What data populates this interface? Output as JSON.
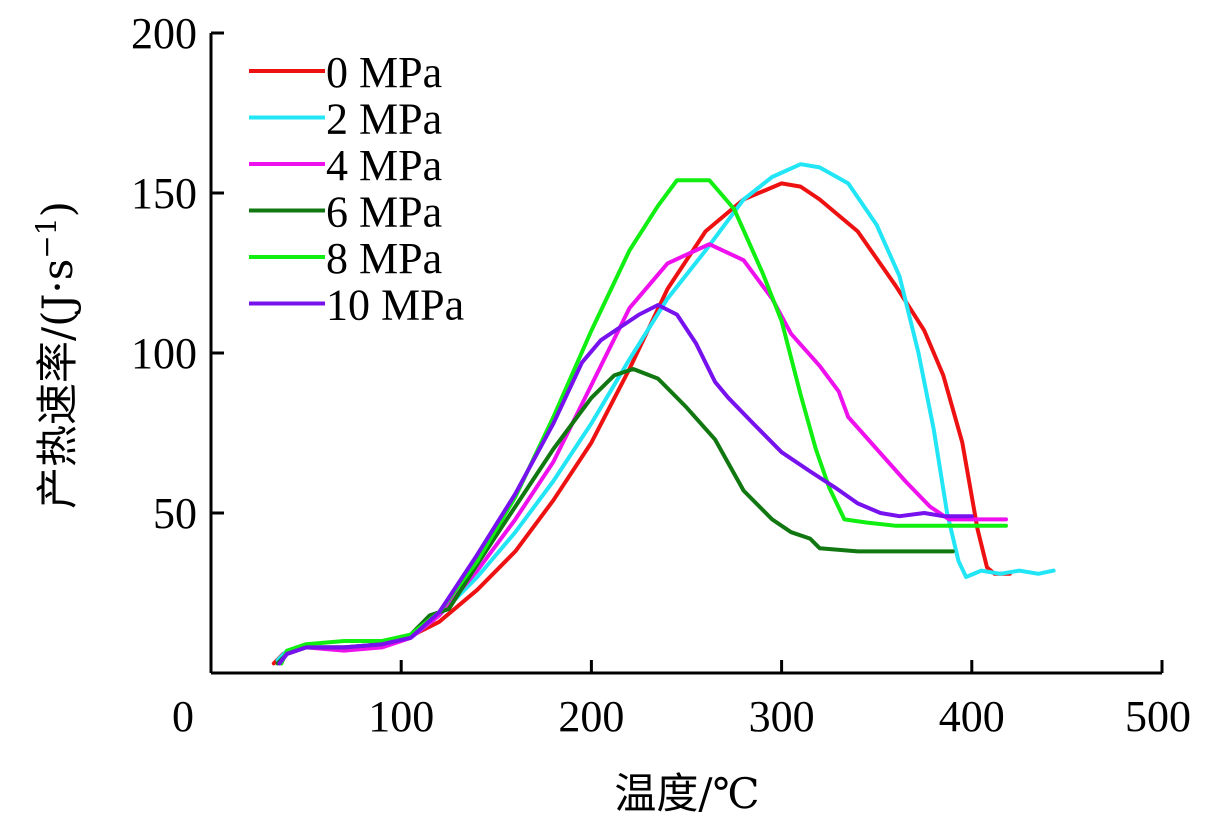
{
  "chart_data": {
    "type": "line",
    "title": "",
    "xlabel": "温度/℃",
    "ylabel": "产热速率/(J·s⁻¹)",
    "ylabel_parts": {
      "main": "产热速率/(J·s",
      "sup": "−1",
      "close": ")"
    },
    "xlim": [
      0,
      500
    ],
    "ylim": [
      0,
      200
    ],
    "xticks": [
      0,
      100,
      200,
      300,
      400,
      500
    ],
    "yticks": [
      50,
      100,
      150,
      200
    ],
    "xtick_labels": [
      "0",
      "100",
      "200",
      "300",
      "400",
      "500"
    ],
    "ytick_labels": [
      "50",
      "100",
      "150",
      "200"
    ],
    "grid": false,
    "legend_position": "top-left",
    "series": [
      {
        "name": "0 MPa",
        "color": "#ee1111",
        "points": [
          [
            33,
            3
          ],
          [
            38,
            6
          ],
          [
            45,
            8
          ],
          [
            60,
            8
          ],
          [
            80,
            8
          ],
          [
            100,
            10
          ],
          [
            120,
            16
          ],
          [
            140,
            26
          ],
          [
            160,
            38
          ],
          [
            180,
            54
          ],
          [
            200,
            72
          ],
          [
            220,
            95
          ],
          [
            240,
            120
          ],
          [
            260,
            138
          ],
          [
            280,
            148
          ],
          [
            300,
            153
          ],
          [
            310,
            152
          ],
          [
            320,
            148
          ],
          [
            340,
            138
          ],
          [
            360,
            121
          ],
          [
            375,
            107
          ],
          [
            385,
            93
          ],
          [
            395,
            72
          ],
          [
            403,
            45
          ],
          [
            408,
            33
          ],
          [
            412,
            31
          ],
          [
            420,
            31
          ]
        ]
      },
      {
        "name": "2 MPa",
        "color": "#22e5f5",
        "points": [
          [
            35,
            4
          ],
          [
            40,
            7
          ],
          [
            50,
            8
          ],
          [
            70,
            8
          ],
          [
            90,
            9
          ],
          [
            105,
            11
          ],
          [
            120,
            18
          ],
          [
            140,
            30
          ],
          [
            160,
            44
          ],
          [
            180,
            60
          ],
          [
            200,
            78
          ],
          [
            220,
            98
          ],
          [
            240,
            117
          ],
          [
            260,
            132
          ],
          [
            280,
            148
          ],
          [
            295,
            155
          ],
          [
            310,
            159
          ],
          [
            320,
            158
          ],
          [
            335,
            153
          ],
          [
            350,
            140
          ],
          [
            362,
            124
          ],
          [
            372,
            100
          ],
          [
            380,
            76
          ],
          [
            387,
            50
          ],
          [
            393,
            35
          ],
          [
            397,
            30
          ],
          [
            405,
            32
          ],
          [
            415,
            31
          ],
          [
            425,
            32
          ],
          [
            435,
            31
          ],
          [
            443,
            32
          ]
        ]
      },
      {
        "name": "4 MPa",
        "color": "#ee11ee",
        "points": [
          [
            36,
            3
          ],
          [
            40,
            6
          ],
          [
            50,
            8
          ],
          [
            70,
            7
          ],
          [
            90,
            8
          ],
          [
            105,
            11
          ],
          [
            120,
            18
          ],
          [
            140,
            32
          ],
          [
            160,
            48
          ],
          [
            180,
            66
          ],
          [
            200,
            90
          ],
          [
            220,
            114
          ],
          [
            240,
            128
          ],
          [
            262,
            134
          ],
          [
            280,
            129
          ],
          [
            295,
            117
          ],
          [
            305,
            106
          ],
          [
            320,
            96
          ],
          [
            330,
            88
          ],
          [
            335,
            80
          ],
          [
            350,
            70
          ],
          [
            365,
            60
          ],
          [
            378,
            52
          ],
          [
            388,
            48
          ],
          [
            400,
            48
          ],
          [
            418,
            48
          ]
        ]
      },
      {
        "name": "6 MPa",
        "color": "#117711",
        "points": [
          [
            35,
            3
          ],
          [
            40,
            6
          ],
          [
            50,
            8
          ],
          [
            70,
            8
          ],
          [
            90,
            9
          ],
          [
            105,
            12
          ],
          [
            115,
            18
          ],
          [
            125,
            20
          ],
          [
            140,
            34
          ],
          [
            160,
            52
          ],
          [
            180,
            70
          ],
          [
            200,
            86
          ],
          [
            212,
            93
          ],
          [
            222,
            95
          ],
          [
            235,
            92
          ],
          [
            250,
            83
          ],
          [
            265,
            73
          ],
          [
            280,
            57
          ],
          [
            295,
            48
          ],
          [
            305,
            44
          ],
          [
            315,
            42
          ],
          [
            320,
            39
          ],
          [
            340,
            38
          ],
          [
            360,
            38
          ],
          [
            380,
            38
          ],
          [
            390,
            38
          ]
        ]
      },
      {
        "name": "8 MPa",
        "color": "#11ee11",
        "points": [
          [
            37,
            3
          ],
          [
            40,
            7
          ],
          [
            50,
            9
          ],
          [
            70,
            10
          ],
          [
            90,
            10
          ],
          [
            105,
            12
          ],
          [
            120,
            19
          ],
          [
            140,
            35
          ],
          [
            160,
            55
          ],
          [
            180,
            80
          ],
          [
            200,
            107
          ],
          [
            220,
            132
          ],
          [
            235,
            146
          ],
          [
            245,
            154
          ],
          [
            262,
            154
          ],
          [
            275,
            145
          ],
          [
            290,
            125
          ],
          [
            300,
            110
          ],
          [
            310,
            87
          ],
          [
            318,
            70
          ],
          [
            325,
            58
          ],
          [
            333,
            48
          ],
          [
            345,
            47
          ],
          [
            360,
            46
          ],
          [
            380,
            46
          ],
          [
            400,
            46
          ],
          [
            418,
            46
          ]
        ]
      },
      {
        "name": "10 MPa",
        "color": "#7711ee",
        "points": [
          [
            36,
            3
          ],
          [
            40,
            6
          ],
          [
            50,
            8
          ],
          [
            70,
            8
          ],
          [
            90,
            9
          ],
          [
            105,
            11
          ],
          [
            120,
            19
          ],
          [
            140,
            37
          ],
          [
            160,
            56
          ],
          [
            180,
            78
          ],
          [
            195,
            97
          ],
          [
            205,
            104
          ],
          [
            215,
            108
          ],
          [
            225,
            112
          ],
          [
            235,
            115
          ],
          [
            245,
            112
          ],
          [
            255,
            103
          ],
          [
            265,
            91
          ],
          [
            272,
            86
          ],
          [
            285,
            78
          ],
          [
            300,
            69
          ],
          [
            315,
            63
          ],
          [
            328,
            58
          ],
          [
            340,
            53
          ],
          [
            352,
            50
          ],
          [
            362,
            49
          ],
          [
            375,
            50
          ],
          [
            385,
            49
          ],
          [
            400,
            49
          ]
        ]
      }
    ]
  }
}
